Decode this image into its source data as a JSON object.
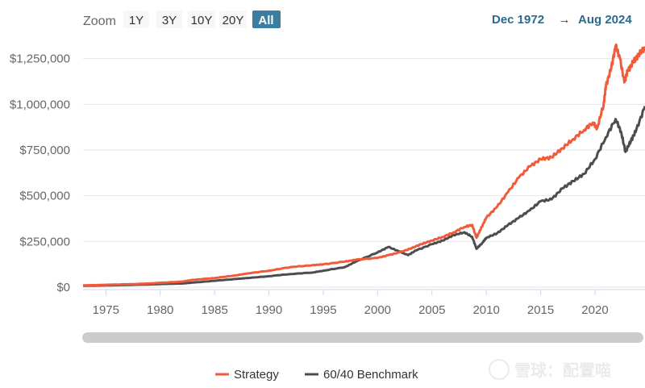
{
  "range_selector": {
    "label": "Zoom",
    "buttons": [
      {
        "label": "1Y",
        "active": false
      },
      {
        "label": "3Y",
        "active": false
      },
      {
        "label": "10Y",
        "active": false
      },
      {
        "label": "20Y",
        "active": false
      },
      {
        "label": "All",
        "active": true
      }
    ]
  },
  "date_range": {
    "from": "Dec 1972",
    "arrow": "→",
    "to": "Aug 2024"
  },
  "watermark": "雪球：配置喵",
  "colors": {
    "strategy": "#f15a3a",
    "benchmark": "#4d4d4d",
    "accent": "#2c6a8d",
    "button_active": "#3a7ea1"
  },
  "chart_data": {
    "type": "line",
    "title": "",
    "xlabel": "",
    "ylabel": "",
    "xlim": [
      1972.9,
      2024.6
    ],
    "ylim": [
      0,
      1350000
    ],
    "y_ticks": [
      0,
      250000,
      500000,
      750000,
      1000000,
      1250000
    ],
    "y_tick_labels": [
      "$0",
      "$250,000",
      "$500,000",
      "$750,000",
      "$1,000,000",
      "$1,250,000"
    ],
    "x_ticks": [
      1975,
      1980,
      1985,
      1990,
      1995,
      2000,
      2005,
      2010,
      2015,
      2020
    ],
    "x_tick_labels": [
      "1975",
      "1980",
      "1985",
      "1990",
      "1995",
      "2000",
      "2005",
      "2010",
      "2015",
      "2020"
    ],
    "grid": "horizontal",
    "legend_position": "bottom-center",
    "series": [
      {
        "name": "Strategy",
        "color": "#f15a3a",
        "x": [
          1972.9,
          1974,
          1975,
          1977,
          1979,
          1980,
          1982,
          1983,
          1985,
          1987,
          1988,
          1990,
          1992,
          1994,
          1995,
          1997,
          1998,
          2000,
          2001,
          2002,
          2003,
          2004,
          2005,
          2006,
          2007,
          2008,
          2008.7,
          2009.1,
          2009.5,
          2010,
          2011,
          2012,
          2013,
          2014,
          2015,
          2016,
          2017,
          2018,
          2019,
          2019.8,
          2020.2,
          2020.8,
          2021,
          2021.5,
          2021.9,
          2022.3,
          2022.7,
          2023,
          2023.5,
          2024,
          2024.6
        ],
        "y": [
          10000,
          11000,
          13000,
          16000,
          20000,
          24000,
          30000,
          40000,
          50000,
          65000,
          75000,
          90000,
          110000,
          120000,
          125000,
          140000,
          150000,
          160000,
          175000,
          190000,
          210000,
          235000,
          255000,
          275000,
          300000,
          330000,
          340000,
          270000,
          320000,
          380000,
          440000,
          520000,
          600000,
          660000,
          700000,
          710000,
          760000,
          810000,
          860000,
          900000,
          870000,
          1000000,
          1100000,
          1200000,
          1320000,
          1250000,
          1120000,
          1180000,
          1230000,
          1270000,
          1310000
        ]
      },
      {
        "name": "60/40 Benchmark",
        "color": "#4d4d4d",
        "x": [
          1972.9,
          1974,
          1975,
          1977,
          1979,
          1980,
          1982,
          1983,
          1985,
          1987,
          1988,
          1990,
          1992,
          1994,
          1995,
          1997,
          1998,
          2000,
          2001,
          2002,
          2002.8,
          2003.5,
          2005,
          2006,
          2007,
          2008,
          2008.7,
          2009.1,
          2009.6,
          2010,
          2011,
          2012,
          2013,
          2014,
          2015,
          2016,
          2017,
          2018,
          2019,
          2020,
          2021,
          2021.9,
          2022.4,
          2022.8,
          2023.3,
          2023.8,
          2024.6
        ],
        "y": [
          8000,
          8500,
          9500,
          12000,
          15000,
          17000,
          20000,
          25000,
          35000,
          45000,
          50000,
          60000,
          72000,
          80000,
          90000,
          110000,
          140000,
          190000,
          220000,
          195000,
          175000,
          200000,
          235000,
          255000,
          285000,
          300000,
          275000,
          210000,
          240000,
          270000,
          295000,
          340000,
          380000,
          420000,
          470000,
          480000,
          540000,
          580000,
          620000,
          700000,
          820000,
          920000,
          850000,
          740000,
          800000,
          860000,
          990000
        ]
      }
    ]
  }
}
